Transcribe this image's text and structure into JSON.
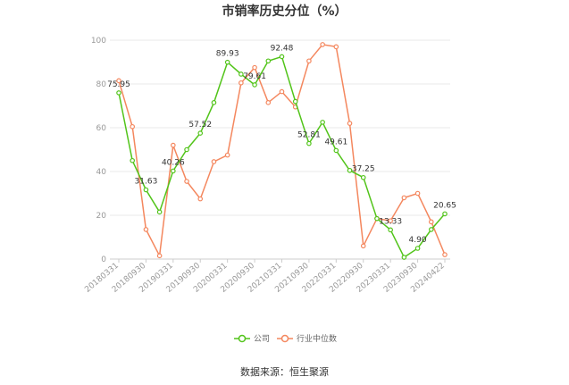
{
  "title": "市销率历史分位（%）",
  "source": "数据来源：恒生聚源",
  "chart_data": {
    "type": "line",
    "x": [
      "20180331",
      "20180630",
      "20180930",
      "20181231",
      "20190331",
      "20190630",
      "20190930",
      "20191231",
      "20200331",
      "20200630",
      "20200930",
      "20201231",
      "20210331",
      "20210630",
      "20210930",
      "20211231",
      "20220331",
      "20220630",
      "20220930",
      "20221231",
      "20230331",
      "20230630",
      "20230930",
      "20231231",
      "20240422"
    ],
    "x_tick_labels": [
      "20180331",
      "20180930",
      "20190331",
      "20190930",
      "20200331",
      "20200930",
      "20210331",
      "20210930",
      "20220331",
      "20220930",
      "20230331",
      "20230930",
      "20240422"
    ],
    "ylim": [
      0,
      100
    ],
    "y_ticks": [
      0,
      20,
      40,
      60,
      80,
      100
    ],
    "grid": true,
    "legend_position": "bottom",
    "series": [
      {
        "name": "公司",
        "color": "#52c41a",
        "values": [
          75.95,
          45,
          31.63,
          21.5,
          40.26,
          50,
          57.52,
          71.5,
          89.93,
          84.5,
          79.61,
          90.5,
          92.48,
          72,
          52.81,
          62.5,
          49.61,
          40.5,
          37.25,
          18.5,
          13.33,
          0.8,
          4.9,
          13.5,
          20.65
        ]
      },
      {
        "name": "行业中位数",
        "color": "#f4875e",
        "values": [
          81.5,
          60.5,
          13.5,
          1.5,
          52,
          35.5,
          27.5,
          44.5,
          47.5,
          80.5,
          87.5,
          71.5,
          76.5,
          69.5,
          90.5,
          98,
          97,
          62,
          6,
          18.5,
          17.5,
          28,
          30,
          17,
          2
        ]
      }
    ],
    "data_labels": [
      {
        "index": 0,
        "text": "75.95"
      },
      {
        "index": 2,
        "text": "31.63"
      },
      {
        "index": 4,
        "text": "40.26"
      },
      {
        "index": 6,
        "text": "57.52"
      },
      {
        "index": 8,
        "text": "89.93"
      },
      {
        "index": 10,
        "text": "79.61"
      },
      {
        "index": 12,
        "text": "92.48"
      },
      {
        "index": 14,
        "text": "52.81"
      },
      {
        "index": 16,
        "text": "49.61"
      },
      {
        "index": 18,
        "text": "37.25"
      },
      {
        "index": 20,
        "text": "13.33"
      },
      {
        "index": 22,
        "text": "4.90"
      },
      {
        "index": 24,
        "text": "20.65"
      }
    ]
  }
}
